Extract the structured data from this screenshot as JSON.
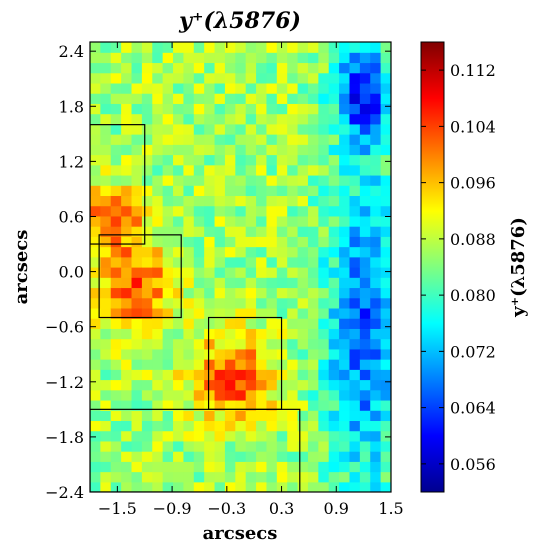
{
  "chart_data": {
    "type": "heatmap",
    "title": "y⁺(λ5876)",
    "xlabel": "arcsecs",
    "ylabel": "arcsecs",
    "colorbar_label": "y⁺(λ5876)",
    "xlim": [
      -1.8,
      1.5
    ],
    "ylim": [
      -2.4,
      2.5
    ],
    "xticks": [
      -1.5,
      -0.9,
      -0.3,
      0.3,
      0.9,
      1.5
    ],
    "xtick_labels": [
      "−1.5",
      "−0.9",
      "−0.3",
      "0.3",
      "0.9",
      "1.5"
    ],
    "yticks": [
      2.4,
      1.8,
      1.2,
      0.6,
      0.0,
      -0.6,
      -1.2,
      -1.8,
      -2.4
    ],
    "ytick_labels": [
      "2.4",
      "1.8",
      "1.2",
      "0.6",
      "0.0",
      "−0.6",
      "−1.2",
      "−1.8",
      "−2.4"
    ],
    "colorbar_range": [
      0.052,
      0.116
    ],
    "colorbar_ticks": [
      0.112,
      0.104,
      0.096,
      0.088,
      0.08,
      0.072,
      0.064,
      0.056
    ],
    "colorbar_tick_labels": [
      "0.112",
      "0.104",
      "0.096",
      "0.088",
      "0.080",
      "0.072",
      "0.064",
      "0.056"
    ],
    "colormap": "jet",
    "grid": false,
    "overlay_rectangles": [
      {
        "x0": -1.8,
        "x1": -1.2,
        "y0": 0.3,
        "y1": 1.6
      },
      {
        "x0": -1.7,
        "x1": -0.8,
        "y0": -0.5,
        "y1": 0.4
      },
      {
        "x0": -0.5,
        "x1": 0.3,
        "y0": -1.5,
        "y1": -0.5
      },
      {
        "x0": -1.8,
        "x1": 0.5,
        "y0": -2.4,
        "y1": -1.5
      }
    ],
    "value_regions": [
      {
        "note": "high (red/orange)",
        "x": [
          -1.6,
          -1.0
        ],
        "y": [
          -0.5,
          0.2
        ],
        "value": 0.104
      },
      {
        "note": "high (red/orange)",
        "x": [
          -0.6,
          0.1
        ],
        "y": [
          -1.5,
          -0.8
        ],
        "value": 0.104
      },
      {
        "note": "high (orange)",
        "x": [
          -1.8,
          -1.3
        ],
        "y": [
          0.4,
          0.8
        ],
        "value": 0.102
      },
      {
        "note": "low (blue)",
        "x": [
          0.9,
          1.5
        ],
        "y": [
          -2.4,
          1.2
        ],
        "value": 0.066
      },
      {
        "note": "low (blue)",
        "x": [
          1.0,
          1.4
        ],
        "y": [
          1.5,
          2.4
        ],
        "value": 0.062
      }
    ]
  }
}
